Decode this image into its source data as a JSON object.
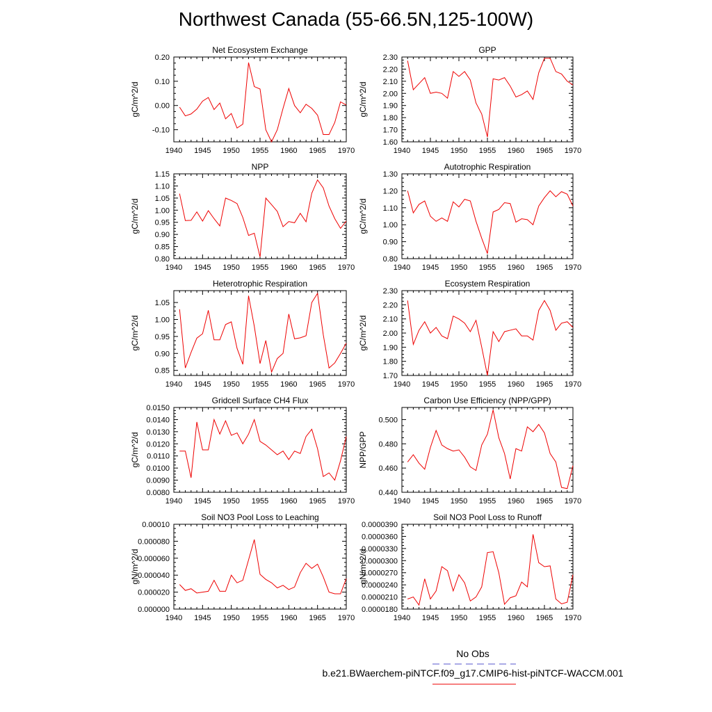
{
  "figure": {
    "title": "Northwest Canada (55-66.5N,125-100W)",
    "legend": {
      "obs_label": "No Obs",
      "obs_color": "#5555cc",
      "case_label": "b.e21.BWaerchem-piNTCF.f09_g17.CMIP6-hist-piNTCF-WACCM.001",
      "case_color": "#ee0000"
    }
  },
  "chart_data": [
    {
      "type": "line",
      "title": "Net Ecosystem Exchange",
      "ylabel": "gC/m^2/d",
      "xlabel": "",
      "xlim": [
        1940,
        1970
      ],
      "ylim": [
        -0.15,
        0.2
      ],
      "xticks": [
        "1940",
        "1945",
        "1950",
        "1955",
        "1960",
        "1965",
        "1970"
      ],
      "yticks": [
        "0.20",
        "0.10",
        "0.00",
        "-0.10"
      ],
      "ytick_values": [
        0.2,
        0.1,
        0.0,
        -0.1
      ],
      "series": [
        {
          "color": "#ee0000",
          "x": [
            1941,
            1942,
            1943,
            1944,
            1945,
            1946,
            1947,
            1948,
            1949,
            1950,
            1951,
            1952,
            1953,
            1954,
            1955,
            1956,
            1957,
            1958,
            1959,
            1960,
            1961,
            1962,
            1963,
            1964,
            1965,
            1966,
            1967,
            1968,
            1969,
            1970
          ],
          "values": [
            -0.007,
            -0.043,
            -0.035,
            -0.015,
            0.018,
            0.033,
            -0.017,
            0.01,
            -0.055,
            -0.033,
            -0.093,
            -0.077,
            0.177,
            0.078,
            0.068,
            -0.1,
            -0.15,
            -0.1,
            -0.012,
            0.07,
            0.0,
            -0.03,
            0.005,
            -0.012,
            -0.04,
            -0.12,
            -0.12,
            -0.07,
            0.015,
            0.002
          ]
        }
      ]
    },
    {
      "type": "line",
      "title": "GPP",
      "ylabel": "gC/m^2/d",
      "xlabel": "",
      "xlim": [
        1940,
        1970
      ],
      "ylim": [
        1.6,
        2.3
      ],
      "xticks": [
        "1940",
        "1945",
        "1950",
        "1955",
        "1960",
        "1965",
        "1970"
      ],
      "yticks": [
        "2.30",
        "2.20",
        "2.10",
        "2.00",
        "1.90",
        "1.80",
        "1.70",
        "1.60"
      ],
      "ytick_values": [
        2.3,
        2.2,
        2.1,
        2.0,
        1.9,
        1.8,
        1.7,
        1.6
      ],
      "series": [
        {
          "color": "#ee0000",
          "x": [
            1941,
            1942,
            1943,
            1944,
            1945,
            1946,
            1947,
            1948,
            1949,
            1950,
            1951,
            1952,
            1953,
            1954,
            1955,
            1956,
            1957,
            1958,
            1959,
            1960,
            1961,
            1962,
            1963,
            1964,
            1965,
            1966,
            1967,
            1968,
            1969,
            1970
          ],
          "values": [
            2.27,
            2.03,
            2.08,
            2.13,
            2.0,
            2.01,
            2.0,
            1.96,
            2.18,
            2.14,
            2.18,
            2.11,
            1.92,
            1.83,
            1.64,
            2.12,
            2.11,
            2.13,
            2.06,
            1.97,
            1.99,
            2.02,
            1.95,
            2.17,
            2.29,
            2.29,
            2.18,
            2.16,
            2.1,
            2.07
          ]
        }
      ]
    },
    {
      "type": "line",
      "title": "NPP",
      "ylabel": "gC/m^2/d",
      "xlabel": "",
      "xlim": [
        1940,
        1970
      ],
      "ylim": [
        0.8,
        1.15
      ],
      "xticks": [
        "1940",
        "1945",
        "1950",
        "1955",
        "1960",
        "1965",
        "1970"
      ],
      "yticks": [
        "1.15",
        "1.10",
        "1.05",
        "1.00",
        "0.95",
        "0.90",
        "0.85",
        "0.80"
      ],
      "ytick_values": [
        1.15,
        1.1,
        1.05,
        1.0,
        0.95,
        0.9,
        0.85,
        0.8
      ],
      "series": [
        {
          "color": "#ee0000",
          "x": [
            1941,
            1942,
            1943,
            1944,
            1945,
            1946,
            1947,
            1948,
            1949,
            1950,
            1951,
            1952,
            1953,
            1954,
            1955,
            1956,
            1957,
            1958,
            1959,
            1960,
            1961,
            1962,
            1963,
            1964,
            1965,
            1966,
            1967,
            1968,
            1969,
            1970
          ],
          "values": [
            1.068,
            0.957,
            0.958,
            0.993,
            0.955,
            0.998,
            0.965,
            0.935,
            1.05,
            1.04,
            1.027,
            0.97,
            0.896,
            0.905,
            0.807,
            1.05,
            1.023,
            0.995,
            0.932,
            0.953,
            0.948,
            0.987,
            0.952,
            1.07,
            1.125,
            1.092,
            1.017,
            0.965,
            0.925,
            0.955
          ]
        }
      ]
    },
    {
      "type": "line",
      "title": "Autotrophic Respiration",
      "ylabel": "gC/m^2/d",
      "xlabel": "",
      "xlim": [
        1940,
        1970
      ],
      "ylim": [
        0.8,
        1.3
      ],
      "xticks": [
        "1940",
        "1945",
        "1950",
        "1955",
        "1960",
        "1965",
        "1970"
      ],
      "yticks": [
        "1.30",
        "1.20",
        "1.10",
        "1.00",
        "0.90",
        "0.80"
      ],
      "ytick_values": [
        1.3,
        1.2,
        1.1,
        1.0,
        0.9,
        0.8
      ],
      "series": [
        {
          "color": "#ee0000",
          "x": [
            1941,
            1942,
            1943,
            1944,
            1945,
            1946,
            1947,
            1948,
            1949,
            1950,
            1951,
            1952,
            1953,
            1954,
            1955,
            1956,
            1957,
            1958,
            1959,
            1960,
            1961,
            1962,
            1963,
            1964,
            1965,
            1966,
            1967,
            1968,
            1969,
            1970
          ],
          "values": [
            1.2,
            1.07,
            1.12,
            1.14,
            1.05,
            1.02,
            1.04,
            1.02,
            1.135,
            1.105,
            1.15,
            1.14,
            1.02,
            0.92,
            0.83,
            1.075,
            1.09,
            1.13,
            1.125,
            1.015,
            1.035,
            1.03,
            1.0,
            1.11,
            1.16,
            1.2,
            1.165,
            1.195,
            1.18,
            1.11
          ]
        }
      ]
    },
    {
      "type": "line",
      "title": "Heterotrophic Respiration",
      "ylabel": "gC/m^2/d",
      "xlabel": "",
      "xlim": [
        1940,
        1970
      ],
      "ylim": [
        0.835,
        1.085
      ],
      "xticks": [
        "1940",
        "1945",
        "1950",
        "1955",
        "1960",
        "1965",
        "1970"
      ],
      "yticks": [
        "1.05",
        "1.00",
        "0.95",
        "0.90",
        "0.85"
      ],
      "ytick_values": [
        1.05,
        1.0,
        0.95,
        0.9,
        0.85
      ],
      "series": [
        {
          "color": "#ee0000",
          "x": [
            1941,
            1942,
            1943,
            1944,
            1945,
            1946,
            1947,
            1948,
            1949,
            1950,
            1951,
            1952,
            1953,
            1954,
            1955,
            1956,
            1957,
            1958,
            1959,
            1960,
            1961,
            1962,
            1963,
            1964,
            1965,
            1966,
            1967,
            1968,
            1969,
            1970
          ],
          "values": [
            1.03,
            0.857,
            0.903,
            0.945,
            0.958,
            1.027,
            0.94,
            0.94,
            0.985,
            0.993,
            0.915,
            0.868,
            1.07,
            0.98,
            0.87,
            0.938,
            0.845,
            0.885,
            0.9,
            1.016,
            0.943,
            0.946,
            0.952,
            1.05,
            1.077,
            0.955,
            0.857,
            0.872,
            0.9,
            0.93
          ]
        }
      ]
    },
    {
      "type": "line",
      "title": "Ecosystem Respiration",
      "ylabel": "gC/m^2/d",
      "xlabel": "",
      "xlim": [
        1940,
        1970
      ],
      "ylim": [
        1.7,
        2.3
      ],
      "xticks": [
        "1940",
        "1945",
        "1950",
        "1955",
        "1960",
        "1965",
        "1970"
      ],
      "yticks": [
        "2.30",
        "2.20",
        "2.10",
        "2.00",
        "1.90",
        "1.80",
        "1.70"
      ],
      "ytick_values": [
        2.3,
        2.2,
        2.1,
        2.0,
        1.9,
        1.8,
        1.7
      ],
      "series": [
        {
          "color": "#ee0000",
          "x": [
            1941,
            1942,
            1943,
            1944,
            1945,
            1946,
            1947,
            1948,
            1949,
            1950,
            1951,
            1952,
            1953,
            1954,
            1955,
            1956,
            1957,
            1958,
            1959,
            1960,
            1961,
            1962,
            1963,
            1964,
            1965,
            1966,
            1967,
            1968,
            1969,
            1970
          ],
          "values": [
            2.23,
            1.92,
            2.02,
            2.08,
            2.0,
            2.04,
            1.98,
            1.96,
            2.12,
            2.1,
            2.07,
            2.01,
            2.09,
            1.9,
            1.7,
            2.01,
            1.94,
            2.01,
            2.02,
            2.03,
            1.98,
            1.98,
            1.95,
            2.16,
            2.23,
            2.16,
            2.02,
            2.07,
            2.08,
            2.04
          ]
        }
      ]
    },
    {
      "type": "line",
      "title": "Gridcell Surface CH4 Flux",
      "ylabel": "gC/m^2/d",
      "xlabel": "",
      "xlim": [
        1940,
        1970
      ],
      "ylim": [
        0.008,
        0.015
      ],
      "xticks": [
        "1940",
        "1945",
        "1950",
        "1955",
        "1960",
        "1965",
        "1970"
      ],
      "yticks": [
        "0.0150",
        "0.0140",
        "0.0130",
        "0.0120",
        "0.0110",
        "0.0100",
        "0.0090",
        "0.0080"
      ],
      "ytick_values": [
        0.015,
        0.014,
        0.013,
        0.012,
        0.011,
        0.01,
        0.009,
        0.008
      ],
      "series": [
        {
          "color": "#ee0000",
          "x": [
            1941,
            1942,
            1943,
            1944,
            1945,
            1946,
            1947,
            1948,
            1949,
            1950,
            1951,
            1952,
            1953,
            1954,
            1955,
            1956,
            1957,
            1958,
            1959,
            1960,
            1961,
            1962,
            1963,
            1964,
            1965,
            1966,
            1967,
            1968,
            1969,
            1970
          ],
          "values": [
            0.0114,
            0.0114,
            0.0092,
            0.0138,
            0.0115,
            0.0115,
            0.014,
            0.0128,
            0.0139,
            0.0127,
            0.0129,
            0.012,
            0.0128,
            0.014,
            0.0122,
            0.0119,
            0.0115,
            0.0111,
            0.0114,
            0.0107,
            0.0114,
            0.0112,
            0.0126,
            0.0132,
            0.0116,
            0.0093,
            0.0096,
            0.009,
            0.0106,
            0.0126
          ]
        }
      ]
    },
    {
      "type": "line",
      "title": "Carbon Use Efficiency (NPP/GPP)",
      "ylabel": "NPP/GPP",
      "xlabel": "",
      "xlim": [
        1940,
        1970
      ],
      "ylim": [
        0.44,
        0.51
      ],
      "xticks": [
        "1940",
        "1945",
        "1950",
        "1955",
        "1960",
        "1965",
        "1970"
      ],
      "yticks": [
        "0.500",
        "0.480",
        "0.460",
        "0.440"
      ],
      "ytick_values": [
        0.5,
        0.48,
        0.46,
        0.44
      ],
      "series": [
        {
          "color": "#ee0000",
          "x": [
            1941,
            1942,
            1943,
            1944,
            1945,
            1946,
            1947,
            1948,
            1949,
            1950,
            1951,
            1952,
            1953,
            1954,
            1955,
            1956,
            1957,
            1958,
            1959,
            1960,
            1961,
            1962,
            1963,
            1964,
            1965,
            1966,
            1967,
            1968,
            1969,
            1970
          ],
          "values": [
            0.465,
            0.471,
            0.464,
            0.459,
            0.477,
            0.491,
            0.479,
            0.476,
            0.474,
            0.475,
            0.469,
            0.461,
            0.458,
            0.479,
            0.488,
            0.508,
            0.485,
            0.472,
            0.451,
            0.476,
            0.474,
            0.494,
            0.49,
            0.496,
            0.489,
            0.472,
            0.465,
            0.444,
            0.443,
            0.462
          ]
        }
      ]
    },
    {
      "type": "line",
      "title": "Soil NO3 Pool Loss to Leaching",
      "ylabel": "gN/m^2/d",
      "xlabel": "",
      "xlim": [
        1940,
        1970
      ],
      "ylim": [
        0.0,
        0.0001
      ],
      "xticks": [
        "1940",
        "1945",
        "1950",
        "1955",
        "1960",
        "1965",
        "1970"
      ],
      "yticks": [
        "0.00010",
        "0.000080",
        "0.000060",
        "0.000040",
        "0.000020",
        "0.000000"
      ],
      "ytick_values": [
        0.0001,
        8e-05,
        6e-05,
        4e-05,
        2e-05,
        0.0
      ],
      "series": [
        {
          "color": "#ee0000",
          "x": [
            1941,
            1942,
            1943,
            1944,
            1945,
            1946,
            1947,
            1948,
            1949,
            1950,
            1951,
            1952,
            1953,
            1954,
            1955,
            1956,
            1957,
            1958,
            1959,
            1960,
            1961,
            1962,
            1963,
            1964,
            1965,
            1966,
            1967,
            1968,
            1969,
            1970
          ],
          "values": [
            2.9e-05,
            2.2e-05,
            2.4e-05,
            1.9e-05,
            2e-05,
            2.1e-05,
            3.4e-05,
            2.1e-05,
            2.1e-05,
            4e-05,
            3.1e-05,
            3.4e-05,
            5.8e-05,
            8.2e-05,
            4.1e-05,
            3.5e-05,
            3.1e-05,
            2.5e-05,
            2.8e-05,
            2.3e-05,
            2.6e-05,
            4.3e-05,
            5.4e-05,
            4.8e-05,
            5.3e-05,
            3.8e-05,
            2e-05,
            1.8e-05,
            1.8e-05,
            3.6e-05
          ]
        }
      ]
    },
    {
      "type": "line",
      "title": "Soil NO3 Pool Loss to Runoff",
      "ylabel": "gN/m^2/d",
      "xlabel": "",
      "xlim": [
        1940,
        1970
      ],
      "ylim": [
        1.8e-05,
        3.9e-05
      ],
      "xticks": [
        "1940",
        "1945",
        "1950",
        "1955",
        "1960",
        "1965",
        "1970"
      ],
      "yticks": [
        "0.0000390",
        "0.0000360",
        "0.0000330",
        "0.0000300",
        "0.0000270",
        "0.0000240",
        "0.0000210",
        "0.0000180"
      ],
      "ytick_values": [
        3.9e-05,
        3.6e-05,
        3.3e-05,
        3e-05,
        2.7e-05,
        2.4e-05,
        2.1e-05,
        1.8e-05
      ],
      "series": [
        {
          "color": "#ee0000",
          "x": [
            1941,
            1942,
            1943,
            1944,
            1945,
            1946,
            1947,
            1948,
            1949,
            1950,
            1951,
            1952,
            1953,
            1954,
            1955,
            1956,
            1957,
            1958,
            1959,
            1960,
            1961,
            1962,
            1963,
            1964,
            1965,
            1966,
            1967,
            1968,
            1969,
            1970
          ],
          "values": [
            2.05e-05,
            2.1e-05,
            1.9e-05,
            2.55e-05,
            2.05e-05,
            2.25e-05,
            2.85e-05,
            2.75e-05,
            2.25e-05,
            2.65e-05,
            2.45e-05,
            2e-05,
            2.1e-05,
            2.35e-05,
            3.2e-05,
            3.22e-05,
            2.7e-05,
            1.92e-05,
            2.08e-05,
            2.13e-05,
            2.47e-05,
            2.35e-05,
            3.65e-05,
            2.95e-05,
            2.85e-05,
            2.87e-05,
            2.05e-05,
            1.93e-05,
            1.97e-05,
            2.65e-05
          ]
        }
      ]
    }
  ]
}
